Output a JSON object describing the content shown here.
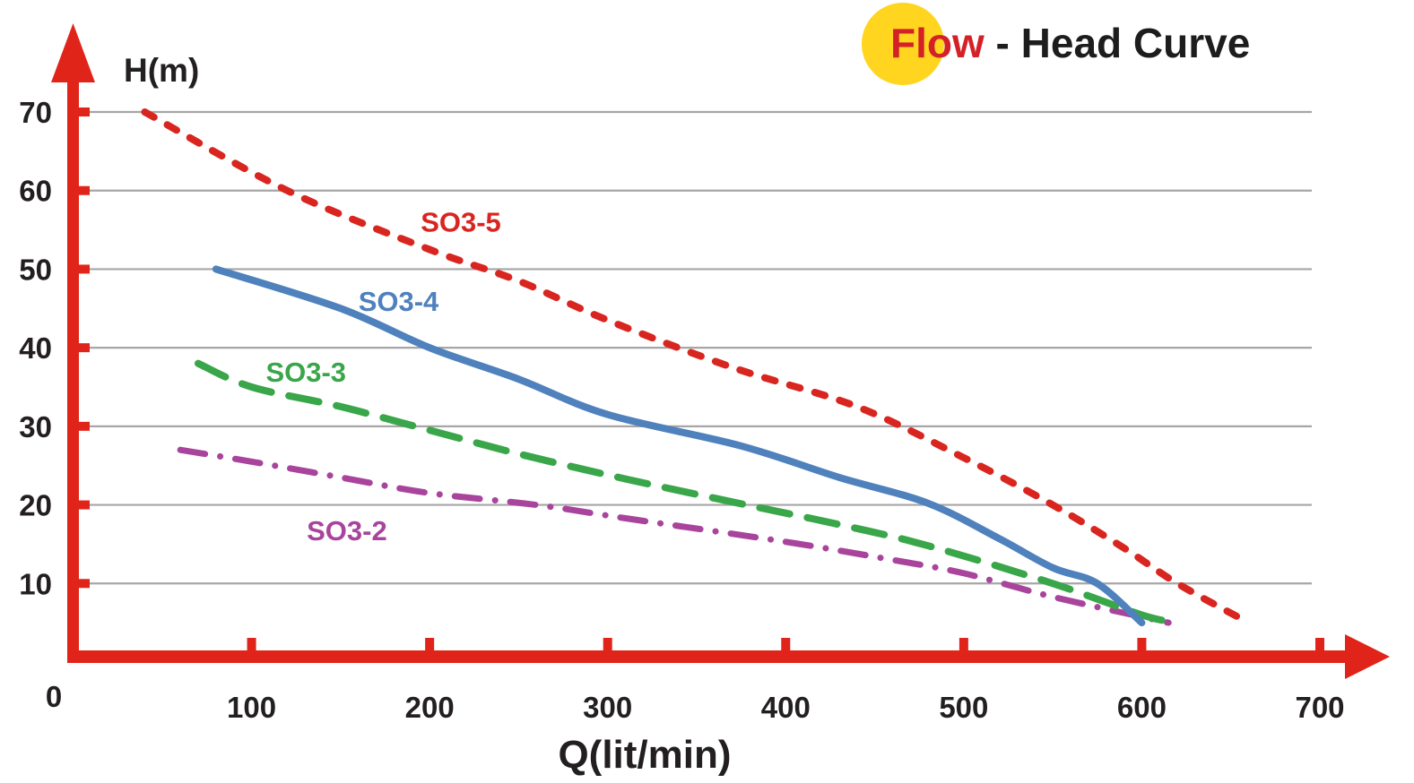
{
  "title": {
    "highlight": "Flow",
    "rest": " - Head Curve",
    "highlight_color": "#d42127",
    "circle_color": "#ffd51f",
    "rest_color": "#1d1d1d"
  },
  "colors": {
    "axis": "#e02419",
    "grid": "#a6a6a6",
    "text": "#231f20",
    "background": "#ffffff"
  },
  "axes": {
    "x_label": "Q(lit/min)",
    "y_label": "H(m)",
    "x_ticks": [
      0,
      100,
      200,
      300,
      400,
      500,
      600,
      700
    ],
    "y_ticks": [
      70,
      60,
      50,
      40,
      30,
      20,
      10
    ]
  },
  "chart_data": {
    "type": "line",
    "title": "Flow - Head Curve",
    "xlabel": "Q(lit/min)",
    "ylabel": "H(m)",
    "xlim": [
      0,
      700
    ],
    "ylim": [
      0,
      70
    ],
    "grid": "horizontal-only",
    "legend": "inline-curve-labels",
    "series": [
      {
        "name": "SO3-2",
        "color": "#a9449d",
        "line_style": "dash-dot",
        "points": [
          [
            60,
            27
          ],
          [
            100,
            25.5
          ],
          [
            150,
            23.5
          ],
          [
            200,
            21.5
          ],
          [
            260,
            20
          ],
          [
            310,
            18.3
          ],
          [
            400,
            15.3
          ],
          [
            460,
            13
          ],
          [
            500,
            11.3
          ],
          [
            550,
            8.3
          ],
          [
            615,
            5
          ]
        ],
        "label_pos": [
          131,
          15.5
        ]
      },
      {
        "name": "SO3-3",
        "color": "#3aa64a",
        "line_style": "long-dash",
        "points": [
          [
            70,
            38
          ],
          [
            100,
            35
          ],
          [
            150,
            32.5
          ],
          [
            200,
            29.5
          ],
          [
            250,
            26.5
          ],
          [
            310,
            23.3
          ],
          [
            378,
            20
          ],
          [
            430,
            17.5
          ],
          [
            480,
            14.8
          ],
          [
            550,
            10
          ],
          [
            600,
            6
          ],
          [
            620,
            5
          ]
        ],
        "label_pos": [
          108,
          35.7
        ]
      },
      {
        "name": "SO3-4",
        "color": "#4f81bd",
        "line_style": "solid",
        "points": [
          [
            80,
            50
          ],
          [
            150,
            45
          ],
          [
            200,
            40
          ],
          [
            250,
            36
          ],
          [
            300,
            31.5
          ],
          [
            375,
            27.5
          ],
          [
            430,
            23.5
          ],
          [
            480,
            20.2
          ],
          [
            520,
            15.7
          ],
          [
            550,
            12
          ],
          [
            575,
            10
          ],
          [
            600,
            5
          ]
        ],
        "label_pos": [
          160,
          44.7
        ]
      },
      {
        "name": "SO3-5",
        "color": "#d9251f",
        "line_style": "dashed",
        "points": [
          [
            40,
            70
          ],
          [
            120,
            60
          ],
          [
            200,
            52.5
          ],
          [
            250,
            48.5
          ],
          [
            300,
            43.5
          ],
          [
            370,
            37.5
          ],
          [
            440,
            32.5
          ],
          [
            500,
            26
          ],
          [
            550,
            20
          ],
          [
            590,
            14.5
          ],
          [
            620,
            10
          ],
          [
            660,
            5
          ]
        ],
        "label_pos": [
          195,
          54.8
        ]
      }
    ]
  }
}
